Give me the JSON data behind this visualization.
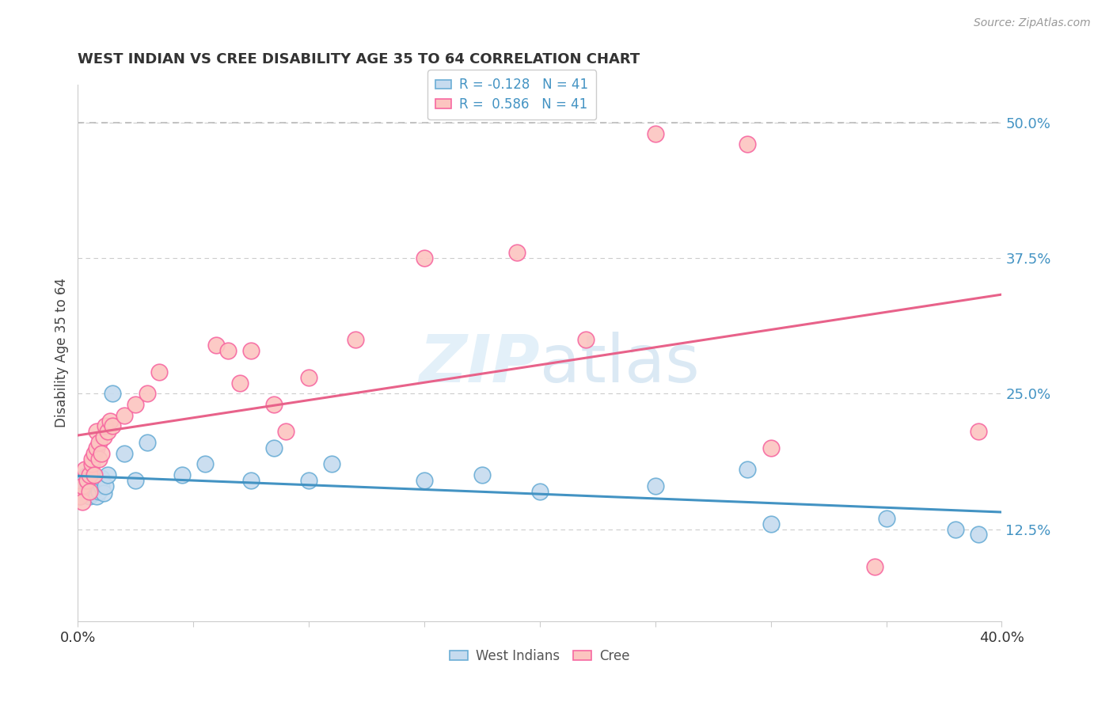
{
  "title": "WEST INDIAN VS CREE DISABILITY AGE 35 TO 64 CORRELATION CHART",
  "source": "Source: ZipAtlas.com",
  "ylabel_label": "Disability Age 35 to 64",
  "legend_label1": "West Indians",
  "legend_label2": "Cree",
  "R_blue": -0.128,
  "N_blue": 41,
  "R_pink": 0.586,
  "N_pink": 41,
  "xmin": 0.0,
  "xmax": 0.4,
  "ymin": 0.04,
  "ymax": 0.535,
  "blue_edge": "#6baed6",
  "pink_edge": "#f768a1",
  "blue_face": "#c6dbef",
  "pink_face": "#fcc5c0",
  "reg_blue": "#4393c3",
  "reg_pink": "#e8628a",
  "dash_color": "#bbbbbb",
  "grid_color": "#cccccc",
  "right_tick_color": "#4393c3",
  "ytick_vals": [
    0.125,
    0.25,
    0.375,
    0.5
  ],
  "ytick_labels": [
    "12.5%",
    "25.0%",
    "37.5%",
    "50.0%"
  ],
  "west_indian_x": [
    0.001,
    0.001,
    0.002,
    0.003,
    0.003,
    0.004,
    0.004,
    0.005,
    0.005,
    0.006,
    0.006,
    0.007,
    0.007,
    0.008,
    0.008,
    0.009,
    0.009,
    0.01,
    0.01,
    0.011,
    0.012,
    0.013,
    0.015,
    0.02,
    0.025,
    0.03,
    0.045,
    0.055,
    0.075,
    0.085,
    0.1,
    0.11,
    0.15,
    0.175,
    0.2,
    0.25,
    0.29,
    0.3,
    0.35,
    0.38,
    0.39
  ],
  "west_indian_y": [
    0.155,
    0.16,
    0.16,
    0.17,
    0.165,
    0.175,
    0.162,
    0.168,
    0.155,
    0.163,
    0.158,
    0.172,
    0.16,
    0.165,
    0.155,
    0.168,
    0.16,
    0.165,
    0.172,
    0.158,
    0.165,
    0.175,
    0.25,
    0.195,
    0.17,
    0.205,
    0.175,
    0.185,
    0.17,
    0.2,
    0.17,
    0.185,
    0.17,
    0.175,
    0.16,
    0.165,
    0.18,
    0.13,
    0.135,
    0.125,
    0.12
  ],
  "cree_x": [
    0.001,
    0.002,
    0.002,
    0.003,
    0.004,
    0.005,
    0.005,
    0.006,
    0.006,
    0.007,
    0.007,
    0.008,
    0.008,
    0.009,
    0.009,
    0.01,
    0.011,
    0.012,
    0.013,
    0.014,
    0.015,
    0.02,
    0.025,
    0.03,
    0.035,
    0.06,
    0.065,
    0.07,
    0.075,
    0.085,
    0.09,
    0.1,
    0.12,
    0.15,
    0.19,
    0.22,
    0.25,
    0.29,
    0.3,
    0.345,
    0.39
  ],
  "cree_y": [
    0.155,
    0.165,
    0.15,
    0.18,
    0.17,
    0.175,
    0.16,
    0.185,
    0.19,
    0.195,
    0.175,
    0.2,
    0.215,
    0.205,
    0.19,
    0.195,
    0.21,
    0.22,
    0.215,
    0.225,
    0.22,
    0.23,
    0.24,
    0.25,
    0.27,
    0.295,
    0.29,
    0.26,
    0.29,
    0.24,
    0.215,
    0.265,
    0.3,
    0.375,
    0.38,
    0.3,
    0.49,
    0.48,
    0.2,
    0.09,
    0.215
  ]
}
